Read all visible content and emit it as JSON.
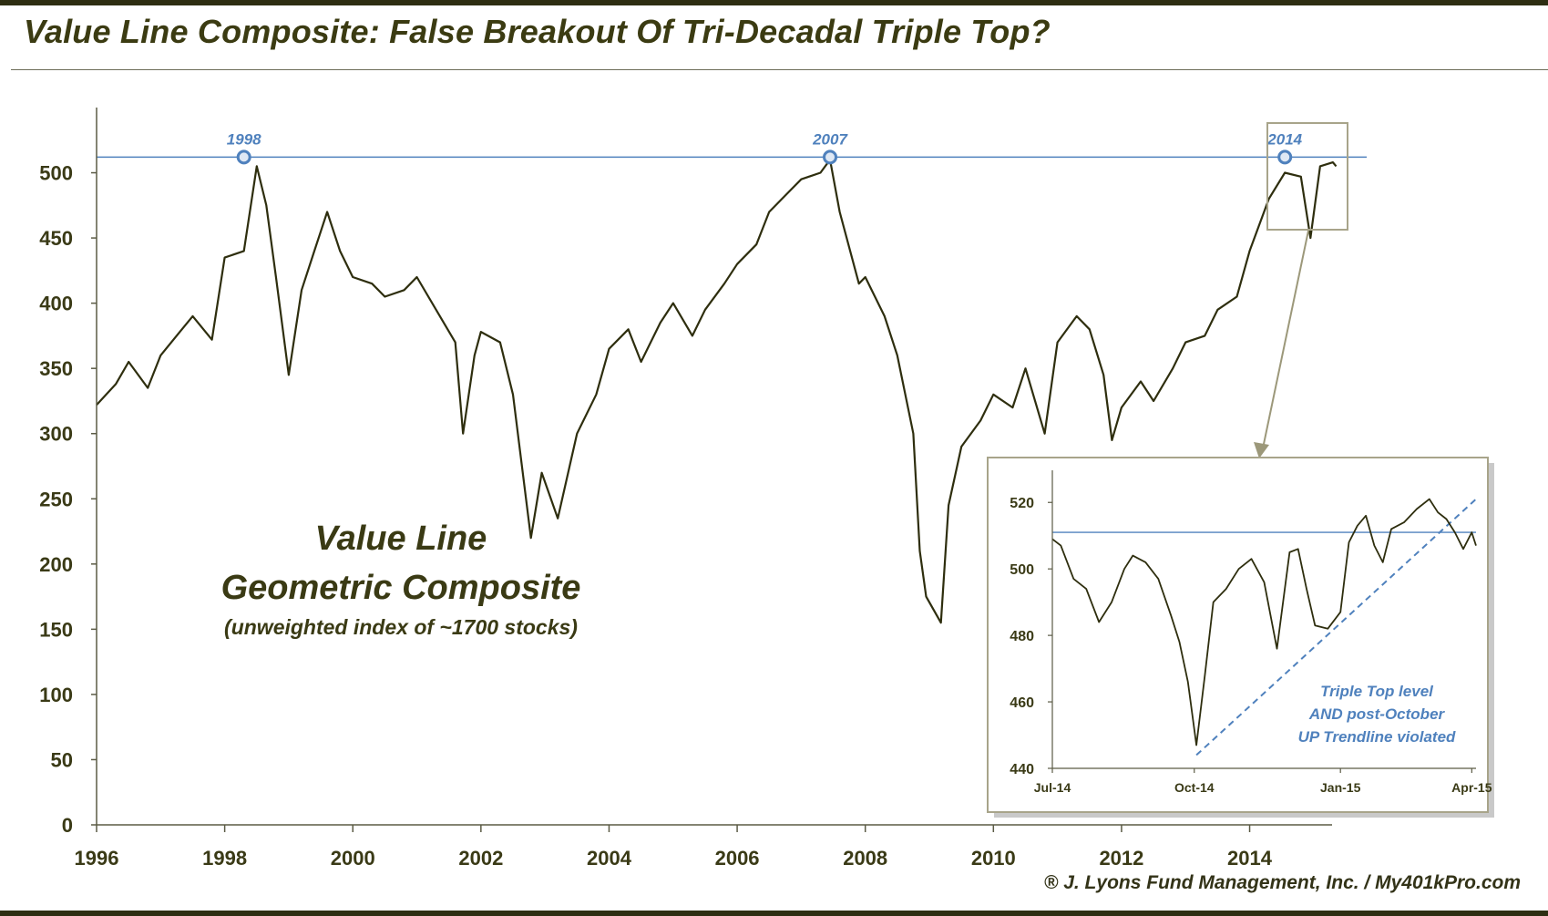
{
  "title": "Value Line Composite: False Breakout Of Tri-Decadal Triple Top?",
  "credit": "® J. Lyons Fund Management, Inc. / My401kPro.com",
  "annotation": {
    "line1": "Value Line",
    "line2": "Geometric Composite",
    "line3": "(unweighted index of ~1700 stocks)"
  },
  "colors": {
    "series": "#2e2e0e",
    "resistance": "#4f81bd",
    "peak_marker": "#4f81bd",
    "axis": "#5b5b45",
    "frame": "#a8a48a"
  },
  "chart_data": [
    {
      "type": "line",
      "title": "",
      "xlabel": "",
      "ylabel": "",
      "xlim": [
        1996,
        2015.5
      ],
      "ylim": [
        0,
        550
      ],
      "x_ticks": [
        "1996",
        "1998",
        "2000",
        "2002",
        "2004",
        "2006",
        "2008",
        "2010",
        "2012",
        "2014"
      ],
      "y_ticks": [
        "0",
        "50",
        "100",
        "150",
        "200",
        "250",
        "300",
        "350",
        "400",
        "450",
        "500"
      ],
      "resistance_level": 512,
      "peaks": [
        {
          "label": "1998",
          "x": 1998.3,
          "y": 512
        },
        {
          "label": "2007",
          "x": 2007.45,
          "y": 512
        },
        {
          "label": "2014",
          "x": 2014.55,
          "y": 512
        }
      ],
      "series": [
        {
          "x": [
            1996.0,
            1996.3,
            1996.5,
            1996.8,
            1997.0,
            1997.3,
            1997.5,
            1997.8,
            1998.0,
            1998.3,
            1998.5,
            1998.65,
            1998.8,
            1999.0,
            1999.2,
            1999.4,
            1999.6,
            1999.8,
            2000.0,
            2000.3,
            2000.5,
            2000.8,
            2001.0,
            2001.3,
            2001.6,
            2001.72,
            2001.9,
            2002.0,
            2002.3,
            2002.5,
            2002.78,
            2002.95,
            2003.2,
            2003.5,
            2003.8,
            2004.0,
            2004.3,
            2004.5,
            2004.8,
            2005.0,
            2005.3,
            2005.5,
            2005.8,
            2006.0,
            2006.3,
            2006.5,
            2006.8,
            2007.0,
            2007.3,
            2007.45,
            2007.6,
            2007.9,
            2008.0,
            2008.3,
            2008.5,
            2008.75,
            2008.85,
            2008.95,
            2009.18,
            2009.3,
            2009.5,
            2009.8,
            2010.0,
            2010.3,
            2010.5,
            2010.8,
            2011.0,
            2011.3,
            2011.5,
            2011.72,
            2011.85,
            2012.0,
            2012.3,
            2012.5,
            2012.8,
            2013.0,
            2013.3,
            2013.5,
            2013.8,
            2014.0,
            2014.3,
            2014.55,
            2014.8,
            2014.95,
            2015.1,
            2015.3,
            2015.35
          ],
          "y": [
            322,
            338,
            355,
            335,
            360,
            378,
            390,
            372,
            435,
            440,
            505,
            475,
            420,
            345,
            410,
            440,
            470,
            440,
            420,
            415,
            405,
            410,
            420,
            395,
            370,
            300,
            360,
            378,
            370,
            330,
            220,
            270,
            235,
            300,
            330,
            365,
            380,
            355,
            385,
            400,
            375,
            395,
            415,
            430,
            445,
            470,
            485,
            495,
            500,
            510,
            470,
            415,
            420,
            390,
            360,
            300,
            210,
            175,
            155,
            245,
            290,
            310,
            330,
            320,
            350,
            300,
            370,
            390,
            380,
            345,
            295,
            320,
            340,
            325,
            350,
            370,
            375,
            395,
            405,
            440,
            480,
            500,
            497,
            450,
            505,
            508,
            505
          ]
        }
      ]
    },
    {
      "type": "line",
      "title": "",
      "xlabel": "",
      "ylabel": "",
      "xlim": [
        "Jul-14",
        "Apr-15"
      ],
      "ylim": [
        440,
        525
      ],
      "x_ticks": [
        "Jul-14",
        "Oct-14",
        "Jan-15",
        "Apr-15"
      ],
      "y_ticks": [
        "440",
        "460",
        "480",
        "500",
        "520"
      ],
      "resistance_level": 511,
      "note": [
        "Triple Top level",
        "AND post-October",
        "UP Trendline violated"
      ],
      "trendline": {
        "from": [
          3.4,
          444
        ],
        "to": [
          10.0,
          521
        ]
      },
      "series": [
        {
          "x": [
            0.0,
            0.2,
            0.5,
            0.8,
            1.1,
            1.4,
            1.7,
            1.9,
            2.2,
            2.5,
            2.8,
            3.0,
            3.2,
            3.4,
            3.6,
            3.8,
            4.1,
            4.4,
            4.7,
            5.0,
            5.3,
            5.6,
            5.8,
            6.0,
            6.2,
            6.5,
            6.8,
            7.0,
            7.2,
            7.4,
            7.6,
            7.8,
            8.0,
            8.3,
            8.6,
            8.9,
            9.1,
            9.3,
            9.5,
            9.7,
            9.9,
            10.0
          ],
          "y": [
            509,
            507,
            497,
            494,
            484,
            490,
            500,
            504,
            502,
            497,
            486,
            478,
            466,
            447,
            468,
            490,
            494,
            500,
            503,
            496,
            476,
            505,
            506,
            494,
            483,
            482,
            487,
            508,
            513,
            516,
            507,
            502,
            512,
            514,
            518,
            521,
            517,
            515,
            511,
            506,
            511,
            507
          ]
        }
      ]
    }
  ]
}
